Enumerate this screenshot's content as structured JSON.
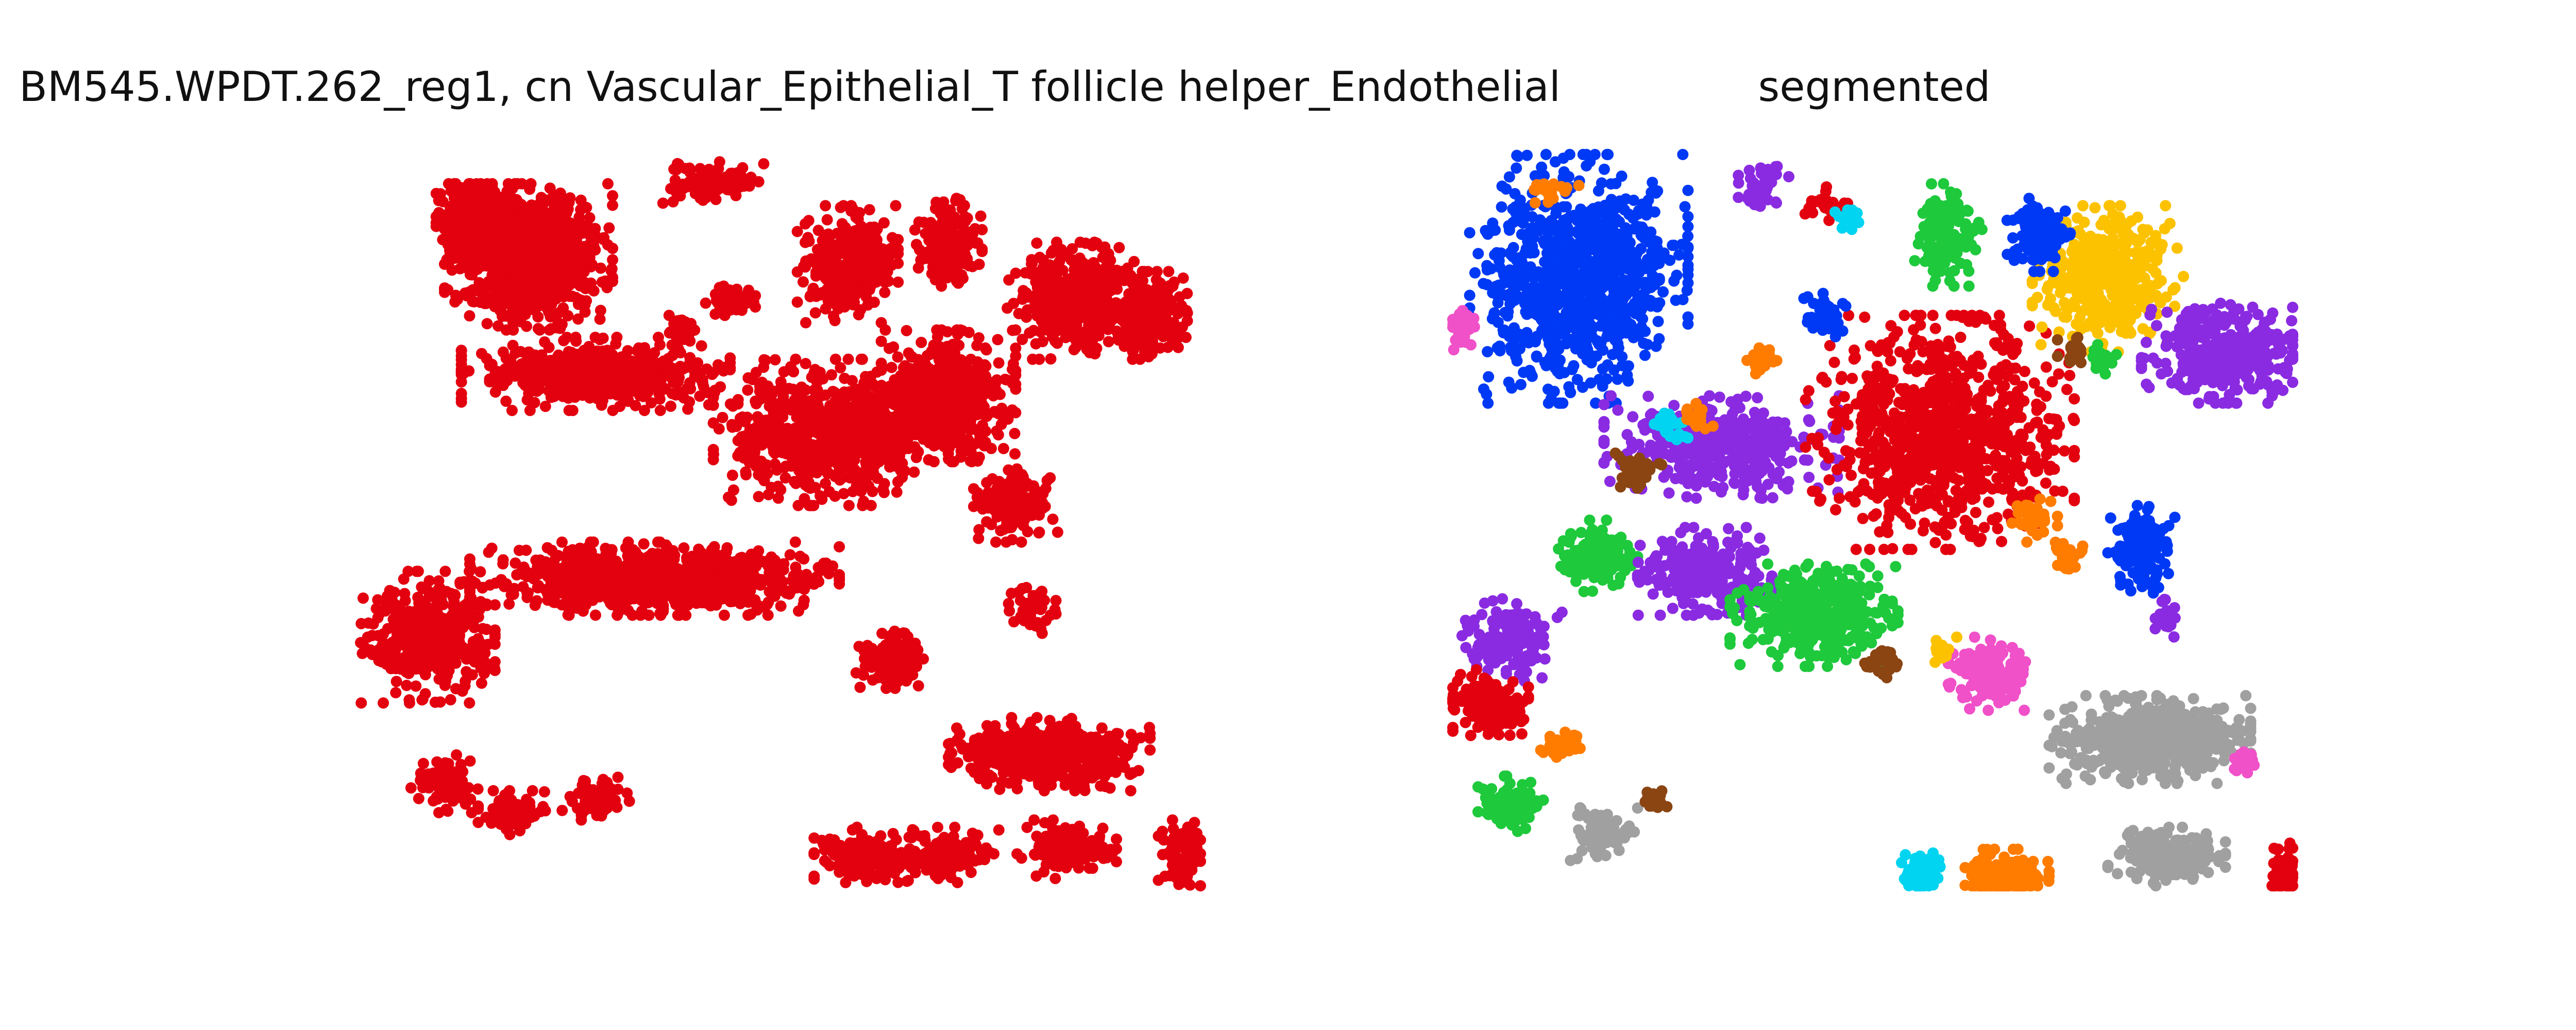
{
  "figure": {
    "left_title": "BM545.WPDT.262_reg1, cn Vascular_Epithelial_T follicle helper_Endothelial",
    "right_title": "segmented"
  },
  "chart_data": [
    {
      "type": "scatter",
      "title": "BM545.WPDT.262_reg1, cn Vascular_Epithelial_T follicle helper_Endothelial",
      "axes_visible": false,
      "series_color": "#e3000f",
      "clusters": [
        {
          "x": 0.2,
          "y": 0.14,
          "rx": 0.1,
          "ry": 0.1,
          "n": 900
        },
        {
          "x": 0.14,
          "y": 0.09,
          "rx": 0.05,
          "ry": 0.05,
          "n": 300
        },
        {
          "x": 0.28,
          "y": 0.3,
          "rx": 0.16,
          "ry": 0.05,
          "n": 520
        },
        {
          "x": 0.42,
          "y": 0.04,
          "rx": 0.06,
          "ry": 0.03,
          "n": 120
        },
        {
          "x": 0.44,
          "y": 0.2,
          "rx": 0.03,
          "ry": 0.02,
          "n": 70
        },
        {
          "x": 0.38,
          "y": 0.24,
          "rx": 0.02,
          "ry": 0.02,
          "n": 40
        },
        {
          "x": 0.58,
          "y": 0.15,
          "rx": 0.06,
          "ry": 0.08,
          "n": 300
        },
        {
          "x": 0.56,
          "y": 0.38,
          "rx": 0.14,
          "ry": 0.1,
          "n": 750
        },
        {
          "x": 0.7,
          "y": 0.33,
          "rx": 0.08,
          "ry": 0.09,
          "n": 520
        },
        {
          "x": 0.7,
          "y": 0.12,
          "rx": 0.04,
          "ry": 0.06,
          "n": 180
        },
        {
          "x": 0.85,
          "y": 0.2,
          "rx": 0.08,
          "ry": 0.08,
          "n": 420
        },
        {
          "x": 0.94,
          "y": 0.22,
          "rx": 0.05,
          "ry": 0.06,
          "n": 230
        },
        {
          "x": 0.78,
          "y": 0.48,
          "rx": 0.05,
          "ry": 0.05,
          "n": 160
        },
        {
          "x": 0.35,
          "y": 0.58,
          "rx": 0.22,
          "ry": 0.05,
          "n": 900
        },
        {
          "x": 0.08,
          "y": 0.66,
          "rx": 0.08,
          "ry": 0.09,
          "n": 420
        },
        {
          "x": 0.1,
          "y": 0.86,
          "rx": 0.04,
          "ry": 0.04,
          "n": 90
        },
        {
          "x": 0.18,
          "y": 0.9,
          "rx": 0.04,
          "ry": 0.03,
          "n": 90
        },
        {
          "x": 0.28,
          "y": 0.88,
          "rx": 0.04,
          "ry": 0.03,
          "n": 70
        },
        {
          "x": 0.63,
          "y": 0.69,
          "rx": 0.04,
          "ry": 0.04,
          "n": 120
        },
        {
          "x": 0.8,
          "y": 0.62,
          "rx": 0.03,
          "ry": 0.04,
          "n": 40
        },
        {
          "x": 0.82,
          "y": 0.82,
          "rx": 0.12,
          "ry": 0.05,
          "n": 520
        },
        {
          "x": 0.6,
          "y": 0.96,
          "rx": 0.06,
          "ry": 0.04,
          "n": 140
        },
        {
          "x": 0.7,
          "y": 0.96,
          "rx": 0.06,
          "ry": 0.04,
          "n": 160
        },
        {
          "x": 0.84,
          "y": 0.95,
          "rx": 0.06,
          "ry": 0.04,
          "n": 140
        },
        {
          "x": 0.98,
          "y": 0.96,
          "rx": 0.03,
          "ry": 0.05,
          "n": 80
        }
      ]
    },
    {
      "type": "scatter",
      "title": "segmented",
      "axes_visible": false,
      "clusters": [
        {
          "x": 0.15,
          "y": 0.17,
          "rx": 0.13,
          "ry": 0.17,
          "n": 900,
          "color": "#0039f5"
        },
        {
          "x": 0.32,
          "y": 0.4,
          "rx": 0.14,
          "ry": 0.07,
          "n": 420,
          "color": "#8a2be2"
        },
        {
          "x": 0.58,
          "y": 0.38,
          "rx": 0.16,
          "ry": 0.16,
          "n": 900,
          "color": "#e3000f"
        },
        {
          "x": 0.78,
          "y": 0.17,
          "rx": 0.09,
          "ry": 0.1,
          "n": 420,
          "color": "#fcc200"
        },
        {
          "x": 0.92,
          "y": 0.27,
          "rx": 0.1,
          "ry": 0.07,
          "n": 380,
          "color": "#8a2be2"
        },
        {
          "x": 0.59,
          "y": 0.11,
          "rx": 0.04,
          "ry": 0.07,
          "n": 130,
          "color": "#1ec93c"
        },
        {
          "x": 0.7,
          "y": 0.11,
          "rx": 0.04,
          "ry": 0.05,
          "n": 110,
          "color": "#0039f5"
        },
        {
          "x": 0.44,
          "y": 0.22,
          "rx": 0.03,
          "ry": 0.03,
          "n": 50,
          "color": "#0039f5"
        },
        {
          "x": 0.37,
          "y": 0.28,
          "rx": 0.02,
          "ry": 0.02,
          "n": 30,
          "color": "#ff7c00"
        },
        {
          "x": 0.37,
          "y": 0.05,
          "rx": 0.03,
          "ry": 0.04,
          "n": 40,
          "color": "#8a2be2"
        },
        {
          "x": 0.44,
          "y": 0.07,
          "rx": 0.03,
          "ry": 0.03,
          "n": 25,
          "color": "#e3000f"
        },
        {
          "x": 0.47,
          "y": 0.09,
          "rx": 0.02,
          "ry": 0.02,
          "n": 15,
          "color": "#00d4f0"
        },
        {
          "x": 0.17,
          "y": 0.55,
          "rx": 0.05,
          "ry": 0.05,
          "n": 150,
          "color": "#1ec93c"
        },
        {
          "x": 0.3,
          "y": 0.57,
          "rx": 0.08,
          "ry": 0.06,
          "n": 280,
          "color": "#8a2be2"
        },
        {
          "x": 0.43,
          "y": 0.63,
          "rx": 0.1,
          "ry": 0.07,
          "n": 380,
          "color": "#1ec93c"
        },
        {
          "x": 0.64,
          "y": 0.71,
          "rx": 0.05,
          "ry": 0.05,
          "n": 140,
          "color": "#f050c8"
        },
        {
          "x": 0.82,
          "y": 0.54,
          "rx": 0.04,
          "ry": 0.06,
          "n": 150,
          "color": "#0039f5"
        },
        {
          "x": 0.07,
          "y": 0.66,
          "rx": 0.06,
          "ry": 0.06,
          "n": 150,
          "color": "#8a2be2"
        },
        {
          "x": 0.04,
          "y": 0.75,
          "rx": 0.05,
          "ry": 0.05,
          "n": 140,
          "color": "#e3000f"
        },
        {
          "x": 0.07,
          "y": 0.89,
          "rx": 0.04,
          "ry": 0.04,
          "n": 90,
          "color": "#1ec93c"
        },
        {
          "x": 0.13,
          "y": 0.81,
          "rx": 0.03,
          "ry": 0.02,
          "n": 45,
          "color": "#ff7c00"
        },
        {
          "x": 0.18,
          "y": 0.93,
          "rx": 0.04,
          "ry": 0.04,
          "n": 80,
          "color": "#a0a0a0"
        },
        {
          "x": 0.83,
          "y": 0.8,
          "rx": 0.12,
          "ry": 0.06,
          "n": 600,
          "color": "#a0a0a0"
        },
        {
          "x": 0.85,
          "y": 0.96,
          "rx": 0.07,
          "ry": 0.04,
          "n": 180,
          "color": "#a0a0a0"
        },
        {
          "x": 0.66,
          "y": 0.99,
          "rx": 0.05,
          "ry": 0.04,
          "n": 190,
          "color": "#ff7c00"
        },
        {
          "x": 0.56,
          "y": 0.98,
          "rx": 0.03,
          "ry": 0.03,
          "n": 80,
          "color": "#00d4f0"
        },
        {
          "x": 0.99,
          "y": 0.98,
          "rx": 0.02,
          "ry": 0.05,
          "n": 70,
          "color": "#e3000f"
        },
        {
          "x": 0.01,
          "y": 0.24,
          "rx": 0.02,
          "ry": 0.03,
          "n": 35,
          "color": "#f050c8"
        },
        {
          "x": 0.69,
          "y": 0.5,
          "rx": 0.03,
          "ry": 0.03,
          "n": 40,
          "color": "#ff7c00"
        },
        {
          "x": 0.73,
          "y": 0.55,
          "rx": 0.02,
          "ry": 0.02,
          "n": 25,
          "color": "#ff7c00"
        },
        {
          "x": 0.26,
          "y": 0.37,
          "rx": 0.02,
          "ry": 0.02,
          "n": 25,
          "color": "#00d4f0"
        },
        {
          "x": 0.22,
          "y": 0.43,
          "rx": 0.03,
          "ry": 0.03,
          "n": 30,
          "color": "#8b4513"
        },
        {
          "x": 0.29,
          "y": 0.36,
          "rx": 0.02,
          "ry": 0.02,
          "n": 20,
          "color": "#ff7c00"
        },
        {
          "x": 0.74,
          "y": 0.27,
          "rx": 0.02,
          "ry": 0.02,
          "n": 25,
          "color": "#8b4513"
        },
        {
          "x": 0.77,
          "y": 0.28,
          "rx": 0.02,
          "ry": 0.02,
          "n": 20,
          "color": "#1ec93c"
        },
        {
          "x": 0.24,
          "y": 0.88,
          "rx": 0.02,
          "ry": 0.02,
          "n": 20,
          "color": "#8b4513"
        },
        {
          "x": 0.51,
          "y": 0.69,
          "rx": 0.02,
          "ry": 0.03,
          "n": 30,
          "color": "#8b4513"
        },
        {
          "x": 0.58,
          "y": 0.68,
          "rx": 0.02,
          "ry": 0.02,
          "n": 15,
          "color": "#fcc200"
        },
        {
          "x": 0.85,
          "y": 0.63,
          "rx": 0.02,
          "ry": 0.03,
          "n": 20,
          "color": "#8a2be2"
        },
        {
          "x": 0.94,
          "y": 0.83,
          "rx": 0.02,
          "ry": 0.02,
          "n": 20,
          "color": "#f050c8"
        },
        {
          "x": 0.12,
          "y": 0.05,
          "rx": 0.03,
          "ry": 0.02,
          "n": 20,
          "color": "#ff7c00"
        }
      ]
    }
  ]
}
